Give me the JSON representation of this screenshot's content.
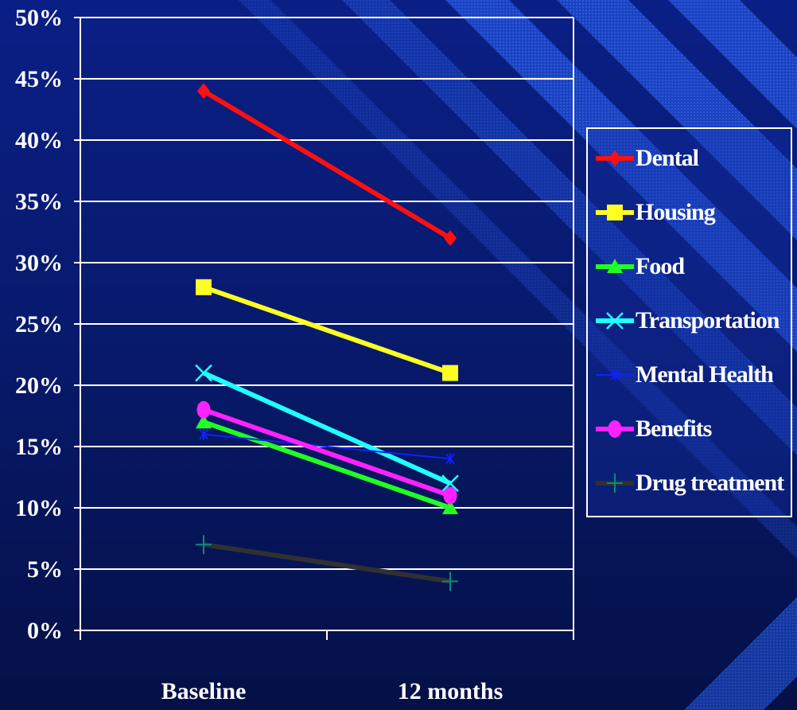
{
  "chart_data": {
    "type": "line",
    "categories": [
      "Baseline",
      "12 months"
    ],
    "y_ticks": [
      "0%",
      "5%",
      "10%",
      "15%",
      "20%",
      "25%",
      "30%",
      "35%",
      "40%",
      "45%",
      "50%"
    ],
    "ylim": [
      0,
      50
    ],
    "grid": true,
    "legend_position": "right",
    "series": [
      {
        "name": "Dental",
        "values": [
          44,
          32
        ],
        "color": "#ff1010",
        "marker": "diamond"
      },
      {
        "name": "Housing",
        "values": [
          28,
          21
        ],
        "color": "#ffff22",
        "marker": "square"
      },
      {
        "name": "Food",
        "values": [
          17,
          10
        ],
        "color": "#22ff22",
        "marker": "triangle"
      },
      {
        "name": "Transportation",
        "values": [
          21,
          12
        ],
        "color": "#22ffff",
        "marker": "x"
      },
      {
        "name": "Mental Health",
        "values": [
          16,
          14
        ],
        "color": "#1020ff",
        "marker": "star"
      },
      {
        "name": "Benefits",
        "values": [
          18,
          11
        ],
        "color": "#ff22ff",
        "marker": "circle"
      },
      {
        "name": "Drug treatment",
        "values": [
          7,
          4
        ],
        "color": "#303030",
        "marker": "plus",
        "marker_color": "#0a8a7a"
      }
    ]
  }
}
